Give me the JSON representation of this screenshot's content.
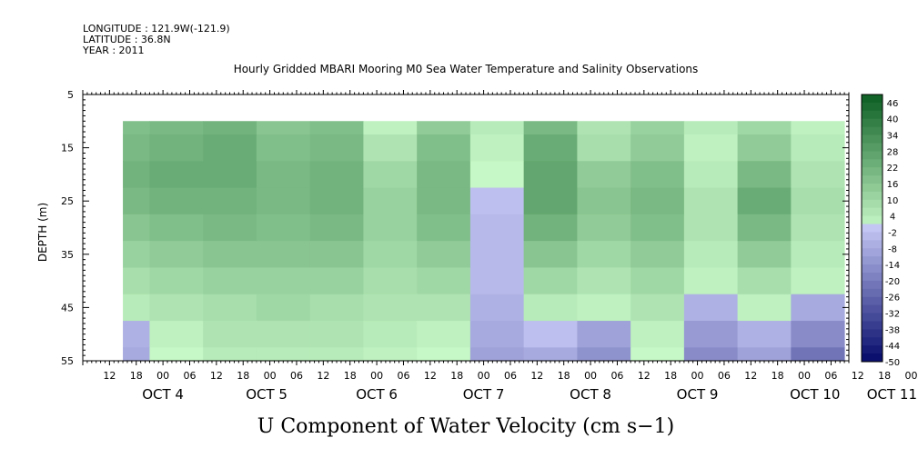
{
  "header": {
    "longitude": "LONGITUDE : 121.9W(-121.9)",
    "latitude": "LATITUDE : 36.8N",
    "year": "YEAR : 2011"
  },
  "chart_data": {
    "type": "heatmap",
    "title": "Hourly Gridded MBARI Mooring M0 Sea Water Temperature and Salinity Observations",
    "ylabel": "DEPTH (m)",
    "xlabel": "U Component of Water Velocity (cm s−1)",
    "y_axis": {
      "range": [
        5,
        55
      ],
      "inverted": true,
      "ticks": [
        "5",
        "15",
        "25",
        "35",
        "45",
        "55"
      ]
    },
    "x_axis": {
      "start": "2011-10-04 06:00",
      "end": "2011-10-11 10:00",
      "hour_ticks": [
        "12",
        "18",
        "00",
        "06",
        "12",
        "18",
        "00",
        "06",
        "12",
        "18",
        "00",
        "06",
        "12",
        "18",
        "00",
        "06",
        "12",
        "18",
        "00",
        "06",
        "12",
        "18",
        "00",
        "06",
        "12",
        "18",
        "00",
        "06",
        "12",
        "18",
        "00",
        "06"
      ],
      "day_labels": [
        "OCT  4",
        "OCT  5",
        "OCT  6",
        "OCT  7",
        "OCT  8",
        "OCT  9",
        "OCT 10",
        "OCT 11"
      ]
    },
    "data_extent": {
      "time_start": "2011-10-04 15:00",
      "depth_range": [
        10,
        55
      ]
    },
    "colorbar": {
      "labels": [
        "46",
        "40",
        "34",
        "28",
        "22",
        "16",
        "10",
        "4",
        "-2",
        "-8",
        "-14",
        "-20",
        "-26",
        "-32",
        "-38",
        "-44",
        "-50"
      ],
      "range": [
        -50,
        49
      ],
      "positive_color_dark": "#0b5e22",
      "positive_color_light": "#c6f7c6",
      "negative_color_light": "#c5c8f4",
      "negative_color_dark": "#050a6a"
    },
    "description_of_field": {
      "depth_rows": [
        10,
        15,
        20,
        25,
        30,
        35,
        40,
        45,
        50,
        55
      ],
      "times": [
        "2011-10-04 15:00",
        "2011-10-05 03:00",
        "2011-10-05 15:00",
        "2011-10-06 03:00",
        "2011-10-06 15:00",
        "2011-10-07 03:00",
        "2011-10-07 15:00",
        "2011-10-08 03:00",
        "2011-10-08 15:00",
        "2011-10-09 03:00",
        "2011-10-09 15:00",
        "2011-10-10 03:00",
        "2011-10-10 15:00",
        "2011-10-11 03:00"
      ],
      "values": [
        [
          18,
          20,
          22,
          16,
          18,
          2,
          14,
          4,
          20,
          6,
          12,
          4,
          10,
          2
        ],
        [
          20,
          22,
          24,
          18,
          20,
          6,
          18,
          2,
          24,
          8,
          14,
          2,
          14,
          4
        ],
        [
          22,
          24,
          24,
          20,
          22,
          10,
          20,
          0,
          26,
          14,
          18,
          4,
          20,
          6
        ],
        [
          20,
          22,
          22,
          20,
          22,
          12,
          20,
          -2,
          26,
          16,
          20,
          6,
          24,
          8
        ],
        [
          16,
          18,
          20,
          18,
          20,
          12,
          18,
          -4,
          22,
          14,
          18,
          6,
          20,
          6
        ],
        [
          12,
          14,
          16,
          16,
          16,
          10,
          14,
          -4,
          16,
          10,
          14,
          4,
          14,
          4
        ],
        [
          8,
          10,
          12,
          12,
          12,
          8,
          10,
          -4,
          10,
          6,
          10,
          2,
          8,
          2
        ],
        [
          4,
          6,
          8,
          10,
          8,
          6,
          6,
          -6,
          4,
          2,
          6,
          -6,
          2,
          -8
        ],
        [
          -6,
          2,
          6,
          6,
          6,
          4,
          2,
          -8,
          -2,
          -10,
          2,
          -12,
          -6,
          -16
        ],
        [
          -8,
          0,
          4,
          4,
          4,
          2,
          0,
          -10,
          -8,
          -14,
          0,
          -16,
          -10,
          -22
        ]
      ]
    }
  }
}
